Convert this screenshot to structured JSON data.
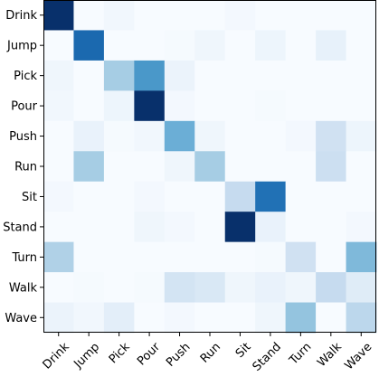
{
  "chart_data": {
    "type": "heatmap",
    "title": "",
    "xlabel": "",
    "ylabel": "",
    "rows": [
      "Drink",
      "Jump",
      "Pick",
      "Pour",
      "Push",
      "Run",
      "Sit",
      "Stand",
      "Turn",
      "Walk",
      "Wave"
    ],
    "columns": [
      "Drink",
      "Jump",
      "Pick",
      "Pour",
      "Push",
      "Run",
      "Sit",
      "Stand",
      "Turn",
      "Walk",
      "Wave"
    ],
    "values": [
      [
        1.0,
        0.0,
        0.03,
        0.0,
        0.0,
        0.0,
        0.02,
        0.0,
        0.0,
        0.0,
        0.0
      ],
      [
        0.0,
        0.78,
        0.0,
        0.0,
        0.01,
        0.04,
        0.0,
        0.05,
        0.0,
        0.08,
        0.0
      ],
      [
        0.04,
        0.0,
        0.35,
        0.6,
        0.06,
        0.0,
        0.0,
        0.0,
        0.0,
        0.0,
        0.0
      ],
      [
        0.03,
        0.0,
        0.05,
        1.0,
        0.02,
        0.0,
        0.0,
        0.01,
        0.0,
        0.0,
        0.0
      ],
      [
        0.0,
        0.07,
        0.01,
        0.03,
        0.5,
        0.04,
        0.0,
        0.0,
        0.02,
        0.2,
        0.05
      ],
      [
        0.0,
        0.35,
        0.0,
        0.0,
        0.04,
        0.35,
        0.0,
        0.0,
        0.0,
        0.22,
        0.0
      ],
      [
        0.02,
        0.0,
        0.0,
        0.02,
        0.0,
        0.0,
        0.25,
        0.75,
        0.0,
        0.0,
        0.0
      ],
      [
        0.0,
        0.0,
        0.0,
        0.04,
        0.02,
        0.0,
        1.0,
        0.07,
        0.0,
        0.0,
        0.02
      ],
      [
        0.32,
        0.0,
        0.0,
        0.0,
        0.0,
        0.0,
        0.0,
        0.01,
        0.2,
        0.0,
        0.45
      ],
      [
        0.0,
        0.01,
        0.0,
        0.01,
        0.18,
        0.15,
        0.04,
        0.07,
        0.04,
        0.25,
        0.12
      ],
      [
        0.06,
        0.03,
        0.1,
        0.0,
        0.02,
        0.0,
        0.0,
        0.04,
        0.4,
        0.0,
        0.28
      ]
    ],
    "vmin": 0,
    "vmax": 1,
    "colormap": "Blues",
    "colorbar": false,
    "grid": false,
    "x_tick_rotation_deg": 45,
    "colors": {
      "low": "#f7fbff",
      "high": "#08306b",
      "frame": "#000000",
      "tick_label": "#000000"
    }
  }
}
